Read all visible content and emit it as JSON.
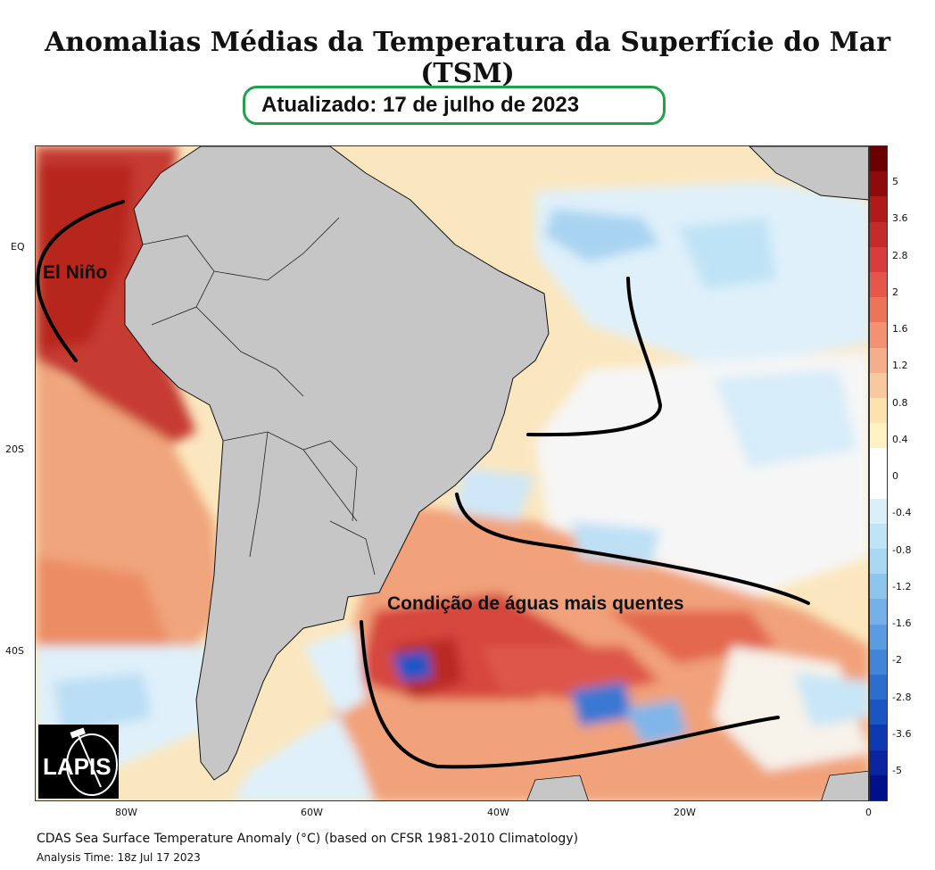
{
  "title": "Anomalias Médias da Temperatura da Superfície do Mar (TSM)",
  "updated": "Atualizado: 17 de julho de 2023",
  "annotations": {
    "el_nino": "El Niño",
    "warm_waters": "Condição de águas mais quentes"
  },
  "logo": {
    "text": "LAPIS"
  },
  "lat_ticks": [
    "EQ",
    "20S",
    "40S"
  ],
  "lon_ticks": [
    "80W",
    "60W",
    "40W",
    "20W",
    "0"
  ],
  "colorbar": {
    "labels": [
      "5",
      "3.6",
      "2.8",
      "2",
      "1.6",
      "1.2",
      "0.8",
      "0.4",
      "0",
      "-0.4",
      "-0.8",
      "-1.2",
      "-1.6",
      "-2",
      "-2.8",
      "-3.6",
      "-5"
    ],
    "colors": [
      "#6b0000",
      "#8e0b0b",
      "#b01a1a",
      "#c62b2b",
      "#d93c3c",
      "#e4574a",
      "#ec7459",
      "#f29272",
      "#f5ae8a",
      "#f9c99e",
      "#fde2ad",
      "#fff2c2",
      "#ffffff",
      "#ffffff",
      "#d9f0fb",
      "#bfe4f7",
      "#a7d7f3",
      "#8ec5ef",
      "#75b0e8",
      "#5b9be1",
      "#4285d8",
      "#2c6ece",
      "#1a55c2",
      "#0d3ab3",
      "#0a24a0",
      "#00108a"
    ]
  },
  "caption": "CDAS Sea Surface Temperature Anomaly (°C) (based on CFSR 1981-2010 Climatology)",
  "analysis_time": "Analysis Time: 18z Jul 17 2023"
}
